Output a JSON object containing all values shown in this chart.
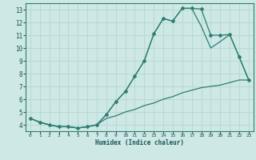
{
  "xlabel": "Humidex (Indice chaleur)",
  "bg_color": "#cde8e5",
  "grid_color": "#b8d8d5",
  "line_color": "#2e7d72",
  "xlim": [
    -0.5,
    23.5
  ],
  "ylim": [
    3.5,
    13.5
  ],
  "xticks": [
    0,
    1,
    2,
    3,
    4,
    5,
    6,
    7,
    8,
    9,
    10,
    11,
    12,
    13,
    14,
    15,
    16,
    17,
    18,
    19,
    20,
    21,
    22,
    23
  ],
  "yticks": [
    4,
    5,
    6,
    7,
    8,
    9,
    10,
    11,
    12,
    13
  ],
  "line1_x": [
    0,
    1,
    2,
    3,
    4,
    5,
    6,
    7,
    8,
    9,
    10,
    11,
    12,
    13,
    14,
    15,
    16,
    17,
    18,
    19,
    20,
    21,
    22,
    23
  ],
  "line1_y": [
    4.5,
    4.2,
    4.0,
    3.85,
    3.85,
    3.75,
    3.85,
    4.0,
    4.8,
    5.8,
    6.6,
    7.8,
    9.0,
    11.1,
    12.3,
    12.1,
    13.1,
    13.1,
    13.05,
    11.0,
    11.0,
    11.05,
    9.3,
    7.5
  ],
  "line2_x": [
    0,
    1,
    2,
    3,
    4,
    5,
    6,
    7,
    8,
    9,
    10,
    11,
    12,
    13,
    14,
    15,
    16,
    17,
    18,
    19,
    20,
    21,
    22,
    23
  ],
  "line2_y": [
    4.5,
    4.2,
    4.0,
    3.85,
    3.85,
    3.75,
    3.85,
    4.0,
    4.8,
    5.8,
    6.6,
    7.8,
    9.0,
    11.1,
    12.3,
    12.1,
    13.1,
    13.1,
    11.7,
    10.0,
    10.5,
    11.05,
    9.3,
    7.5
  ],
  "line3_x": [
    0,
    1,
    2,
    3,
    4,
    5,
    6,
    7,
    8,
    9,
    10,
    11,
    12,
    13,
    14,
    15,
    16,
    17,
    18,
    19,
    20,
    21,
    22,
    23
  ],
  "line3_y": [
    4.5,
    4.2,
    4.0,
    3.85,
    3.85,
    3.75,
    3.85,
    4.0,
    4.5,
    4.7,
    5.0,
    5.2,
    5.5,
    5.7,
    6.0,
    6.2,
    6.5,
    6.7,
    6.9,
    7.0,
    7.1,
    7.3,
    7.5,
    7.5
  ]
}
